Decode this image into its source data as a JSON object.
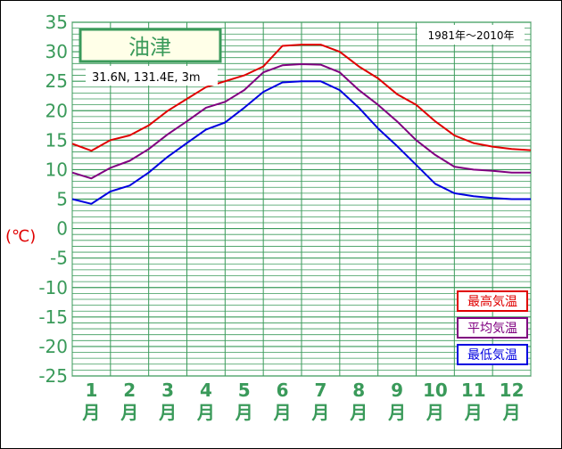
{
  "chart_data": {
    "type": "line",
    "title": "油津",
    "location": "31.6N, 131.4E, 3m",
    "period": "1981年〜2010年",
    "ylabel": "(℃)",
    "ylim": [
      -25,
      35
    ],
    "yticks": [
      -25,
      -20,
      -15,
      -10,
      -5,
      0,
      5,
      10,
      15,
      20,
      25,
      30,
      35
    ],
    "xlim": [
      0.5,
      12.5
    ],
    "categories": [
      "1",
      "2",
      "3",
      "4",
      "5",
      "6",
      "7",
      "8",
      "9",
      "10",
      "11",
      "12"
    ],
    "month_suffix": "月",
    "grid": true,
    "legend_position": "bottom-right",
    "x": [
      0.5,
      1.0,
      1.5,
      2.0,
      2.5,
      3.0,
      3.5,
      4.0,
      4.5,
      5.0,
      5.5,
      6.0,
      6.5,
      7.0,
      7.5,
      8.0,
      8.5,
      9.0,
      9.5,
      10.0,
      10.5,
      11.0,
      11.5,
      12.0,
      12.5
    ],
    "series": [
      {
        "name": "最高気温",
        "color": "#e00000",
        "values": [
          14.4,
          13.2,
          15.0,
          15.8,
          17.5,
          20.0,
          22.0,
          24.0,
          25.0,
          26.0,
          27.5,
          31.0,
          31.2,
          31.2,
          30.0,
          27.5,
          25.5,
          22.8,
          21.0,
          18.2,
          15.8,
          14.5,
          13.9,
          13.5,
          13.3
        ]
      },
      {
        "name": "平均気温",
        "color": "#800080",
        "values": [
          9.5,
          8.5,
          10.3,
          11.5,
          13.5,
          16.0,
          18.2,
          20.5,
          21.5,
          23.5,
          26.5,
          27.7,
          27.9,
          27.8,
          26.5,
          23.5,
          21.0,
          18.2,
          15.0,
          12.5,
          10.5,
          10.0,
          9.8,
          9.5,
          9.5
        ]
      },
      {
        "name": "最低気温",
        "color": "#0000e0",
        "values": [
          5.0,
          4.2,
          6.3,
          7.3,
          9.5,
          12.2,
          14.5,
          16.8,
          18.0,
          20.5,
          23.2,
          24.8,
          25.0,
          25.0,
          23.5,
          20.5,
          17.0,
          14.0,
          10.8,
          7.6,
          6.0,
          5.5,
          5.2,
          5.0,
          5.0
        ]
      }
    ]
  }
}
